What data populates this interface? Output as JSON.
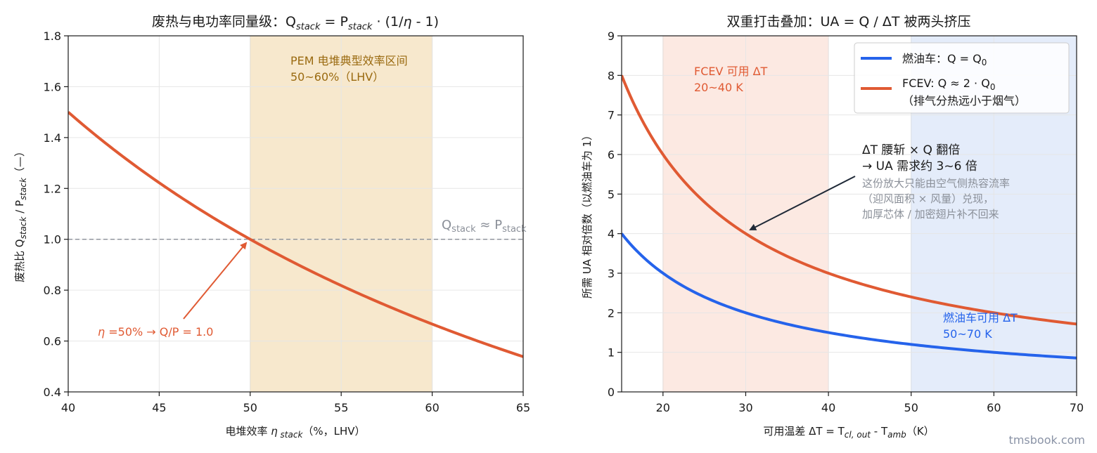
{
  "colors": {
    "pem_band": "#f6e4c4",
    "pem_text": "#9a6a10",
    "fcev_band": "#fbe1d8",
    "ice_band": "#dbe6f8",
    "fcev_line": "#e05a33",
    "ice_line": "#2563eb",
    "ref_line": "#8a8f98",
    "arrow_dark": "#1f2937",
    "note_text": "#8a8f98"
  },
  "watermark": "tmsbook.com",
  "chart_data": [
    {
      "type": "line",
      "title_parts": [
        "废热与电功率同量级：Q",
        "stack",
        " = P",
        "stack",
        " · (1/",
        "η",
        " - 1)"
      ],
      "xlabel_parts": [
        "电堆效率 ",
        "η",
        " stack",
        "（%，LHV）"
      ],
      "ylabel_parts": [
        "废热比 Q",
        "stack",
        " / P",
        "stack",
        "（—）"
      ],
      "xlim": [
        40,
        65
      ],
      "ylim": [
        0.4,
        1.8
      ],
      "xticks": [
        40,
        45,
        50,
        55,
        60,
        65
      ],
      "yticks": [
        0.4,
        0.6,
        0.8,
        1.0,
        1.2,
        1.4,
        1.6,
        1.8
      ],
      "xtick_labels": [
        "40",
        "45",
        "50",
        "55",
        "60",
        "65"
      ],
      "ytick_labels": [
        "0.4",
        "0.6",
        "0.8",
        "1.0",
        "1.2",
        "1.4",
        "1.6",
        "1.8"
      ],
      "grid": true,
      "series": [
        {
          "formula": "100/x - 1",
          "x": [
            40,
            42.5,
            45,
            47.5,
            50,
            52.5,
            55,
            57.5,
            60,
            62.5,
            65
          ],
          "values": [
            1.5,
            1.353,
            1.222,
            1.105,
            1.0,
            0.905,
            0.818,
            0.739,
            0.667,
            0.6,
            0.538
          ]
        }
      ],
      "band": {
        "x0": 50,
        "x1": 60,
        "label_line1": "PEM 电堆典型效率区间",
        "label_line2": "50~60%（LHV）"
      },
      "ref_line": {
        "y": 1.0,
        "label_parts": [
          "Q",
          "stack",
          " ≈ P",
          "stack"
        ]
      },
      "annotation": {
        "text_parts": [
          "η",
          " =50% → Q/P = 1.0"
        ],
        "point": [
          50,
          1.0
        ]
      }
    },
    {
      "type": "line",
      "title": "双重打击叠加：UA = Q / ΔT 被两头挤压",
      "xlabel_parts": [
        "可用温差 ΔT = T",
        "cl, out",
        " - T",
        "amb",
        "（K）"
      ],
      "ylabel": "所需 UA 相对倍数（以燃油车为 1）",
      "xlim": [
        15,
        70
      ],
      "ylim": [
        0,
        9
      ],
      "xticks": [
        20,
        30,
        40,
        50,
        60,
        70
      ],
      "yticks": [
        0,
        1,
        2,
        3,
        4,
        5,
        6,
        7,
        8,
        9
      ],
      "xtick_labels": [
        "20",
        "30",
        "40",
        "50",
        "60",
        "70"
      ],
      "ytick_labels": [
        "0",
        "1",
        "2",
        "3",
        "4",
        "5",
        "6",
        "7",
        "8",
        "9"
      ],
      "grid": true,
      "legend": "top-right",
      "series": [
        {
          "name_parts": [
            "燃油车：Q = Q",
            "0"
          ],
          "formula": "60/x",
          "x": [
            15,
            20,
            25,
            30,
            35,
            40,
            45,
            50,
            55,
            60,
            65,
            70
          ],
          "values": [
            4.0,
            3.0,
            2.4,
            2.0,
            1.714,
            1.5,
            1.333,
            1.2,
            1.091,
            1.0,
            0.923,
            0.857
          ]
        },
        {
          "name_parts": [
            "FCEV: Q ≈ 2 · Q",
            "0"
          ],
          "name_line2": "（排气分热远小于烟气）",
          "formula": "120/x",
          "x": [
            15,
            20,
            25,
            30,
            35,
            40,
            45,
            50,
            55,
            60,
            65,
            70
          ],
          "values": [
            8.0,
            6.0,
            4.8,
            4.0,
            3.429,
            3.0,
            2.667,
            2.4,
            2.182,
            2.0,
            1.846,
            1.714
          ]
        }
      ],
      "bands": [
        {
          "x0": 20,
          "x1": 40,
          "label_line1": "FCEV 可用 ΔT",
          "label_line2": "20~40 K"
        },
        {
          "x0": 50,
          "x1": 70,
          "label_line1": "燃油车可用 ΔT",
          "label_line2": "50~70 K"
        }
      ],
      "annotation": {
        "line1": "ΔT 腰斩 × Q 翻倍",
        "line2": "→ UA 需求约 3~6 倍",
        "note1": "这份放大只能由空气侧热容流率",
        "note2": "（迎风面积 × 风量）兑现，",
        "note3": "加厚芯体 / 加密翅片补不回来",
        "point": [
          30,
          4.0
        ]
      }
    }
  ]
}
